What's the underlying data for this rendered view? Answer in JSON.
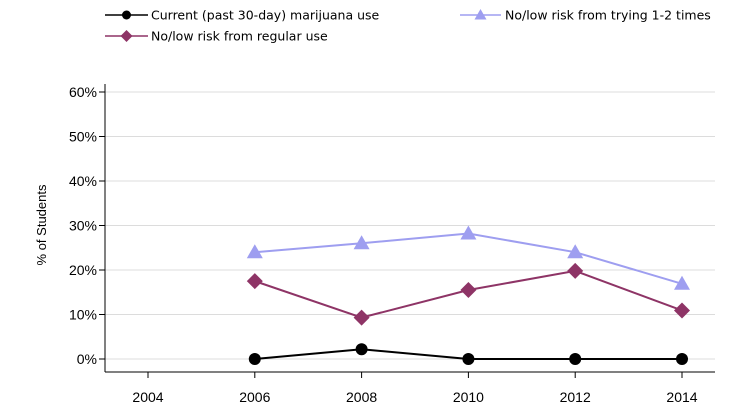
{
  "chart_data": {
    "type": "line",
    "title": "",
    "xlabel": "",
    "ylabel": "% of Students",
    "x": [
      "2004",
      "2006",
      "2008",
      "2010",
      "2012",
      "2014"
    ],
    "y_ticks": [
      "0%",
      "10%",
      "20%",
      "30%",
      "40%",
      "50%",
      "60%"
    ],
    "ylim": [
      0,
      60
    ],
    "grid": true,
    "legend_position": "top",
    "series": [
      {
        "name": "Current (past 30-day) marijuana use",
        "color": "#000000",
        "marker": "circle",
        "values": [
          null,
          0,
          2.2,
          0,
          0,
          0
        ]
      },
      {
        "name": "No/low risk from regular use",
        "color": "#8e3466",
        "marker": "diamond",
        "values": [
          null,
          17.5,
          9.3,
          15.5,
          19.8,
          10.9
        ]
      },
      {
        "name": "No/low risk from trying 1-2 times",
        "color": "#9e9ef0",
        "marker": "triangle",
        "values": [
          null,
          24,
          26,
          28.2,
          24,
          16.9
        ]
      }
    ]
  }
}
